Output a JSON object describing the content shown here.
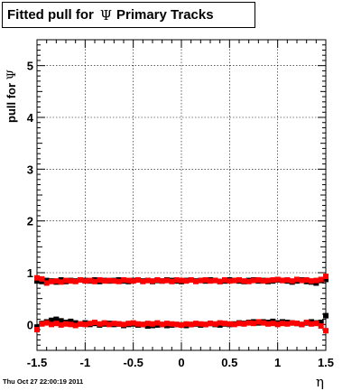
{
  "chart_data": {
    "type": "scatter",
    "title_prefix": "Fitted pull for",
    "title_symbol": "Ψ",
    "title_suffix": "Primary Tracks",
    "ylabel_prefix": "pull for",
    "ylabel_symbol": "Ψ",
    "xlabel": "η",
    "timestamp": "Thu Oct 27 22:00:19 2011",
    "xlim": [
      -1.5,
      1.5
    ],
    "ylim": [
      -0.5,
      5.5
    ],
    "x_ticks": [
      "-1.5",
      "-1",
      "-0.5",
      "0",
      "0.5",
      "1",
      "1.5"
    ],
    "y_ticks": [
      "0",
      "1",
      "2",
      "3",
      "4",
      "5"
    ],
    "grid": true,
    "x_start": -1.5,
    "x_step": 0.05,
    "series": [
      {
        "color": "#000000",
        "values": [
          0.84,
          0.83,
          0.85,
          0.84,
          0.82,
          0.86,
          0.83,
          0.85,
          0.84,
          0.86,
          0.85,
          0.84,
          0.86,
          0.83,
          0.85,
          0.84,
          0.85,
          0.86,
          0.84,
          0.83,
          0.85,
          0.86,
          0.84,
          0.85,
          0.83,
          0.85,
          0.84,
          0.86,
          0.85,
          0.84,
          0.83,
          0.85,
          0.86,
          0.84,
          0.85,
          0.84,
          0.86,
          0.85,
          0.83,
          0.84,
          0.86,
          0.85,
          0.84,
          0.83,
          0.85,
          0.86,
          0.84,
          0.85,
          0.83,
          0.84,
          0.86,
          0.85,
          0.84,
          0.82,
          0.84,
          0.86,
          0.83,
          0.82,
          0.8,
          0.85,
          0.87
        ]
      },
      {
        "color": "#ff0000",
        "values": [
          0.9,
          0.88,
          0.8,
          0.83,
          0.84,
          0.82,
          0.85,
          0.84,
          0.83,
          0.86,
          0.84,
          0.85,
          0.83,
          0.86,
          0.84,
          0.85,
          0.84,
          0.83,
          0.86,
          0.85,
          0.84,
          0.86,
          0.83,
          0.85,
          0.84,
          0.86,
          0.84,
          0.85,
          0.83,
          0.86,
          0.85,
          0.84,
          0.86,
          0.83,
          0.85,
          0.86,
          0.84,
          0.85,
          0.83,
          0.86,
          0.84,
          0.85,
          0.86,
          0.84,
          0.83,
          0.85,
          0.86,
          0.84,
          0.85,
          0.86,
          0.87,
          0.85,
          0.86,
          0.84,
          0.87,
          0.85,
          0.86,
          0.84,
          0.85,
          0.87,
          0.93
        ]
      },
      {
        "color": "#000000",
        "values": [
          -0.05,
          0.02,
          0.05,
          0.08,
          0.1,
          0.07,
          0.04,
          0.06,
          0.03,
          0.01,
          0.03,
          0.0,
          0.02,
          -0.01,
          0.01,
          0.02,
          0.0,
          0.01,
          -0.02,
          0.0,
          0.01,
          -0.01,
          0.0,
          -0.03,
          -0.02,
          -0.01,
          0.0,
          -0.02,
          -0.01,
          0.0,
          -0.01,
          -0.02,
          0.0,
          0.01,
          -0.01,
          0.0,
          0.02,
          0.0,
          -0.01,
          0.01,
          0.0,
          0.01,
          0.03,
          0.02,
          0.04,
          0.05,
          0.03,
          0.05,
          0.04,
          0.06,
          0.03,
          0.05,
          0.04,
          0.03,
          0.02,
          0.0,
          0.03,
          0.05,
          0.03,
          0.04,
          0.17
        ]
      },
      {
        "color": "#ff0000",
        "values": [
          -0.1,
          0.01,
          0.03,
          0.0,
          0.02,
          -0.01,
          0.01,
          0.0,
          -0.02,
          0.01,
          0.0,
          0.02,
          0.04,
          0.01,
          0.03,
          0.0,
          0.02,
          0.01,
          0.0,
          0.02,
          0.03,
          0.01,
          0.0,
          0.02,
          0.01,
          0.03,
          0.0,
          0.02,
          0.01,
          0.0,
          -0.01,
          0.01,
          0.0,
          0.02,
          0.01,
          0.0,
          0.02,
          0.01,
          0.03,
          0.02,
          0.01,
          0.0,
          0.02,
          0.01,
          0.03,
          0.02,
          0.05,
          0.03,
          0.01,
          0.02,
          0.0,
          0.02,
          0.01,
          0.03,
          0.02,
          0.0,
          0.04,
          0.01,
          0.02,
          -0.03,
          -0.12
        ]
      }
    ]
  }
}
